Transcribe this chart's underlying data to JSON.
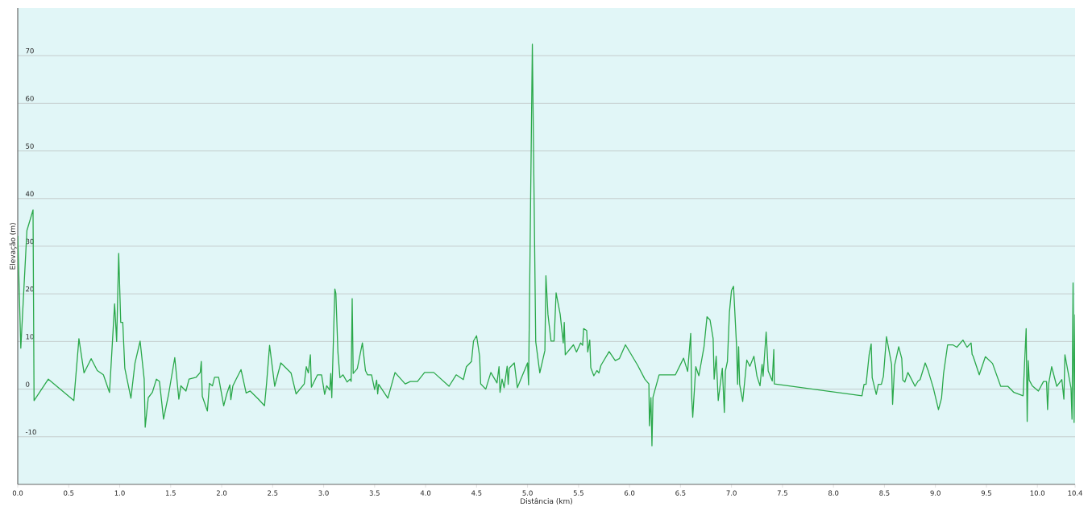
{
  "chart_data": {
    "type": "line",
    "xlabel": "Distância (km)",
    "ylabel": "Elevação (m)",
    "color": "#2aa84a",
    "grid": "y",
    "xlim": [
      0,
      10.37
    ],
    "ylim": [
      -20,
      80
    ],
    "xticks": [
      {
        "value": 0,
        "label": "0.0"
      },
      0.5,
      {
        "value": 1,
        "label": "1.0"
      },
      1.5,
      {
        "value": 2,
        "label": "2.0"
      },
      2.5,
      {
        "value": 3,
        "label": "3.0"
      },
      3.5,
      {
        "value": 4,
        "label": "4.0"
      },
      4.5,
      {
        "value": 5,
        "label": "5.0"
      },
      5.5,
      {
        "value": 6,
        "label": "6.0"
      },
      6.5,
      {
        "value": 7,
        "label": "7.0"
      },
      7.5,
      {
        "value": 8,
        "label": "8.0"
      },
      8.5,
      {
        "value": 9,
        "label": "9.0"
      },
      9.5,
      {
        "value": 10,
        "label": "10.0"
      },
      {
        "value": 10.37,
        "label": "10.4"
      }
    ],
    "yticks": [
      -10,
      0,
      10,
      20,
      30,
      40,
      50,
      60,
      70
    ],
    "x": [
      0.0,
      0.03,
      0.09,
      0.15,
      0.16,
      0.3,
      0.55,
      0.6,
      0.65,
      0.72,
      0.78,
      0.84,
      0.9,
      0.95,
      0.97,
      0.99,
      1.01,
      1.03,
      1.05,
      1.11,
      1.15,
      1.2,
      1.24,
      1.25,
      1.28,
      1.32,
      1.36,
      1.39,
      1.43,
      1.48,
      1.54,
      1.58,
      1.6,
      1.65,
      1.68,
      1.75,
      1.79,
      1.8,
      1.81,
      1.86,
      1.88,
      1.91,
      1.93,
      1.97,
      2.02,
      2.05,
      2.08,
      2.09,
      2.11,
      2.14,
      2.19,
      2.24,
      2.28,
      2.36,
      2.42,
      2.44,
      2.47,
      2.52,
      2.58,
      2.68,
      2.73,
      2.81,
      2.83,
      2.85,
      2.87,
      2.88,
      2.94,
      2.98,
      3.01,
      3.03,
      3.06,
      3.07,
      3.08,
      3.11,
      3.12,
      3.14,
      3.16,
      3.19,
      3.23,
      3.26,
      3.27,
      3.28,
      3.29,
      3.33,
      3.38,
      3.41,
      3.43,
      3.47,
      3.5,
      3.52,
      3.53,
      3.54,
      3.63,
      3.7,
      3.8,
      3.85,
      3.92,
      3.99,
      4.08,
      4.23,
      4.3,
      4.37,
      4.4,
      4.45,
      4.47,
      4.5,
      4.53,
      4.54,
      4.59,
      4.64,
      4.7,
      4.72,
      4.73,
      4.75,
      4.77,
      4.8,
      4.81,
      4.82,
      4.87,
      4.9,
      5.0,
      5.01,
      5.047,
      5.08,
      5.12,
      5.17,
      5.18,
      5.2,
      5.23,
      5.26,
      5.28,
      5.32,
      5.35,
      5.36,
      5.37,
      5.45,
      5.48,
      5.52,
      5.54,
      5.55,
      5.58,
      5.59,
      5.61,
      5.62,
      5.65,
      5.68,
      5.7,
      5.72,
      5.8,
      5.86,
      5.9,
      5.96,
      6.08,
      6.15,
      6.19,
      6.195,
      6.21,
      6.22,
      6.23,
      6.29,
      6.45,
      6.53,
      6.57,
      6.6,
      6.61,
      6.62,
      6.65,
      6.68,
      6.73,
      6.76,
      6.79,
      6.82,
      6.83,
      6.85,
      6.87,
      6.91,
      6.93,
      6.94,
      6.96,
      6.98,
      7.0,
      7.02,
      7.05,
      7.06,
      7.07,
      7.08,
      7.11,
      7.15,
      7.18,
      7.22,
      7.25,
      7.28,
      7.3,
      7.31,
      7.34,
      7.36,
      7.4,
      7.415,
      7.42,
      8.28,
      8.3,
      8.32,
      8.35,
      8.37,
      8.38,
      8.42,
      8.44,
      8.47,
      8.49,
      8.52,
      8.57,
      8.58,
      8.6,
      8.64,
      8.67,
      8.68,
      8.7,
      8.73,
      8.75,
      8.8,
      8.83,
      8.85,
      8.9,
      8.93,
      8.98,
      9.03,
      9.06,
      9.08,
      9.12,
      9.17,
      9.21,
      9.27,
      9.31,
      9.35,
      9.36,
      9.37,
      9.43,
      9.49,
      9.56,
      9.64,
      9.71,
      9.77,
      9.86,
      9.89,
      9.9,
      9.91,
      9.92,
      9.95,
      10.01,
      10.06,
      10.09,
      10.1,
      10.11,
      10.14,
      10.19,
      10.24,
      10.26,
      10.27,
      10.33,
      10.34,
      10.35,
      10.36,
      10.37
    ],
    "values": [
      32.2,
      8.6,
      33.3,
      37.6,
      -2.4,
      2.1,
      -2.4,
      10.6,
      3.4,
      6.4,
      3.9,
      3.0,
      -0.7,
      17.9,
      10.0,
      28.5,
      14.0,
      14.0,
      4.4,
      -1.9,
      5.5,
      10.1,
      2.1,
      -8.0,
      -1.8,
      -0.7,
      2.1,
      1.6,
      -6.3,
      -1.0,
      6.6,
      -2.1,
      0.7,
      -0.4,
      2.1,
      2.5,
      3.5,
      5.8,
      -1.5,
      -4.6,
      1.2,
      0.7,
      2.5,
      2.5,
      -3.5,
      -1.0,
      0.9,
      -2.2,
      0.7,
      2.0,
      4.1,
      -0.8,
      -0.4,
      -2.1,
      -3.5,
      1.1,
      9.2,
      0.6,
      5.5,
      3.4,
      -1.0,
      1.1,
      4.7,
      3.4,
      7.2,
      0.4,
      3.0,
      3.0,
      -1.1,
      0.7,
      -0.2,
      3.3,
      -1.8,
      21.0,
      20.1,
      7.8,
      2.4,
      3.0,
      1.5,
      2.1,
      1.6,
      19.0,
      3.3,
      4.3,
      9.7,
      3.9,
      3.0,
      3.0,
      -0.1,
      1.9,
      -1.0,
      1.0,
      -1.9,
      3.5,
      1.1,
      1.6,
      1.6,
      3.5,
      3.5,
      0.6,
      3.0,
      2.0,
      4.7,
      5.8,
      10.1,
      11.2,
      6.9,
      1.1,
      0.0,
      3.5,
      1.3,
      4.7,
      -0.7,
      2.1,
      0.3,
      4.8,
      1.0,
      4.4,
      5.5,
      0.3,
      5.5,
      0.9,
      72.4,
      10.0,
      3.4,
      8.1,
      23.8,
      15.7,
      10.1,
      10.1,
      20.2,
      15.7,
      9.7,
      14.0,
      7.2,
      9.3,
      7.8,
      9.7,
      9.2,
      12.7,
      12.3,
      7.8,
      10.3,
      4.5,
      2.8,
      3.9,
      3.4,
      5.0,
      7.9,
      6.0,
      6.4,
      9.3,
      5.0,
      2.1,
      1.1,
      -7.7,
      -1.8,
      -11.9,
      -1.7,
      3.0,
      3.0,
      6.5,
      3.7,
      11.7,
      -1.8,
      -5.9,
      4.7,
      2.8,
      8.8,
      15.2,
      14.5,
      10.6,
      2.1,
      6.9,
      -2.4,
      4.4,
      -4.9,
      3.8,
      5.8,
      16.2,
      20.7,
      21.6,
      8.9,
      1.0,
      8.9,
      1.0,
      -2.6,
      6.1,
      4.8,
      6.9,
      2.7,
      0.7,
      5.2,
      2.7,
      12.0,
      3.8,
      1.7,
      8.3,
      1.1,
      -1.4,
      1.0,
      1.0,
      7.2,
      9.5,
      2.4,
      -1.1,
      1.0,
      1.0,
      2.7,
      11.0,
      5.2,
      -3.2,
      5.0,
      8.9,
      6.4,
      1.9,
      1.5,
      3.5,
      2.7,
      0.6,
      1.7,
      2.0,
      5.5,
      3.8,
      0.2,
      -4.3,
      -1.9,
      3.3,
      9.3,
      9.3,
      8.8,
      10.3,
      8.8,
      9.7,
      7.3,
      6.9,
      3.0,
      6.8,
      5.4,
      0.6,
      0.6,
      -0.7,
      -1.4,
      12.7,
      -6.8,
      6.0,
      1.9,
      0.7,
      -0.4,
      1.6,
      1.6,
      -4.3,
      1.0,
      4.7,
      0.6,
      2.0,
      -2.1,
      7.2,
      0.2,
      -6.3,
      22.3,
      -7.0,
      15.7
    ]
  }
}
